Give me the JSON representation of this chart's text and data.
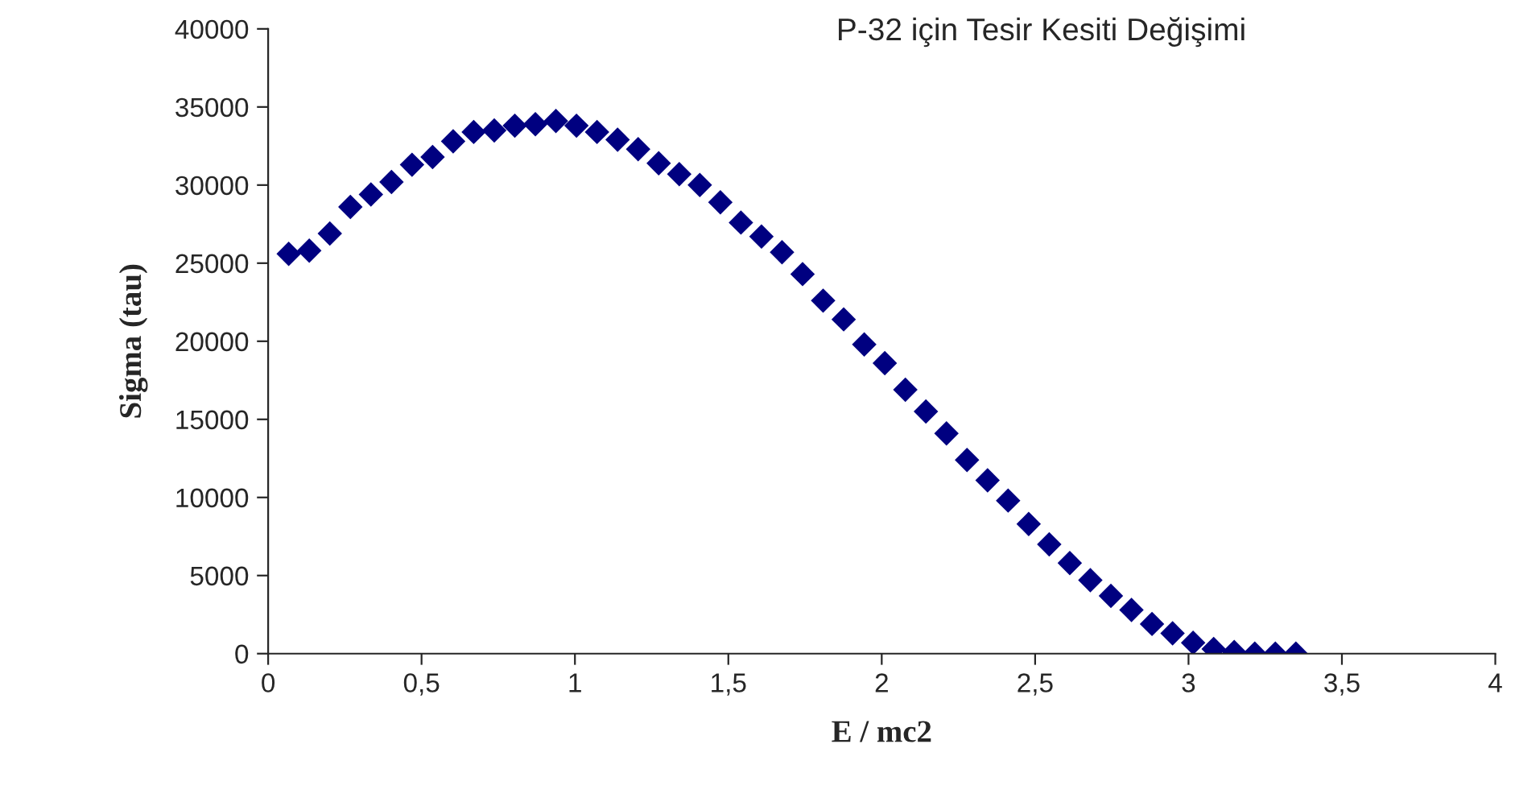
{
  "chart_data": {
    "type": "scatter",
    "title": "P-32 için Tesir Kesiti Değişimi",
    "xlabel": "E / mc2",
    "ylabel": "Sigma (tau)",
    "x": [
      0.067,
      0.134,
      0.201,
      0.268,
      0.335,
      0.402,
      0.469,
      0.536,
      0.603,
      0.67,
      0.737,
      0.804,
      0.871,
      0.938,
      1.005,
      1.072,
      1.139,
      1.206,
      1.273,
      1.34,
      1.407,
      1.474,
      1.541,
      1.608,
      1.675,
      1.742,
      1.809,
      1.876,
      1.943,
      2.01,
      2.077,
      2.144,
      2.211,
      2.278,
      2.345,
      2.412,
      2.479,
      2.546,
      2.613,
      2.68,
      2.747,
      2.814,
      2.881,
      2.948,
      3.015,
      3.082,
      3.149,
      3.216,
      3.283,
      3.35
    ],
    "series": [
      {
        "color": "#000080",
        "values": [
          25600,
          25800,
          26900,
          28600,
          29400,
          30200,
          31300,
          31800,
          32800,
          33400,
          33500,
          33800,
          33900,
          34100,
          33800,
          33400,
          32900,
          32300,
          31400,
          30700,
          30000,
          28900,
          27600,
          26700,
          25700,
          24300,
          22600,
          21400,
          19800,
          18600,
          16900,
          15500,
          14100,
          12400,
          11100,
          9800,
          8300,
          7000,
          5800,
          4700,
          3700,
          2800,
          1900,
          1300,
          700,
          300,
          100,
          0,
          0,
          0
        ]
      }
    ],
    "xlim": [
      0,
      4
    ],
    "ylim": [
      0,
      40000
    ],
    "xticks": [
      0,
      {
        "value": 0.5,
        "label": "0,5"
      },
      1,
      {
        "value": 1.5,
        "label": "1,5"
      },
      2,
      {
        "value": 2.5,
        "label": "2,5"
      },
      3,
      {
        "value": 3.5,
        "label": "3,5"
      },
      4
    ],
    "yticks": [
      0,
      5000,
      10000,
      15000,
      20000,
      25000,
      30000,
      35000,
      40000
    ],
    "marker": "diamond",
    "grid": false,
    "legend": false
  }
}
